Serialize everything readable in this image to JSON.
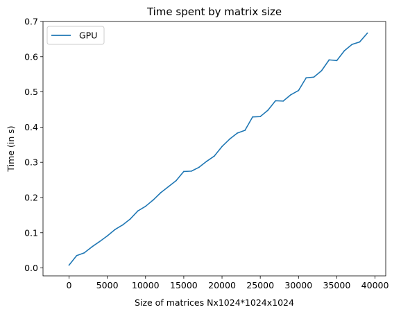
{
  "chart_data": {
    "type": "line",
    "title": "Time spent by matrix size",
    "xlabel": "Size of matrices Nx1024*1024x1024",
    "ylabel": "Time (in s)",
    "xlim": [
      -3400,
      41400
    ],
    "ylim": [
      -0.0225,
      0.7
    ],
    "xticks": [
      0,
      5000,
      10000,
      15000,
      20000,
      25000,
      30000,
      35000,
      40000
    ],
    "yticks": [
      0.0,
      0.1,
      0.2,
      0.3,
      0.4,
      0.5,
      0.6,
      0.7
    ],
    "ytick_labels": [
      "0.0",
      "0.1",
      "0.2",
      "0.3",
      "0.4",
      "0.5",
      "0.6",
      "0.7"
    ],
    "grid": false,
    "legend": "upper-left",
    "series": [
      {
        "name": "GPU",
        "color": "#1f77b4",
        "x": [
          0,
          1000,
          2000,
          3000,
          4000,
          5000,
          6000,
          7000,
          8000,
          9000,
          10000,
          11000,
          12000,
          13000,
          14000,
          15000,
          16000,
          17000,
          18000,
          19000,
          20000,
          21000,
          22000,
          23000,
          24000,
          25000,
          26000,
          27000,
          28000,
          29000,
          30000,
          31000,
          32000,
          33000,
          34000,
          35000,
          36000,
          37000,
          38000,
          39000
        ],
        "y": [
          0.008,
          0.035,
          0.043,
          0.06,
          0.075,
          0.091,
          0.109,
          0.122,
          0.139,
          0.162,
          0.175,
          0.193,
          0.214,
          0.231,
          0.248,
          0.274,
          0.275,
          0.286,
          0.303,
          0.318,
          0.345,
          0.366,
          0.383,
          0.391,
          0.429,
          0.43,
          0.448,
          0.475,
          0.474,
          0.492,
          0.504,
          0.54,
          0.542,
          0.56,
          0.591,
          0.589,
          0.617,
          0.635,
          0.642,
          0.667
        ]
      }
    ]
  }
}
